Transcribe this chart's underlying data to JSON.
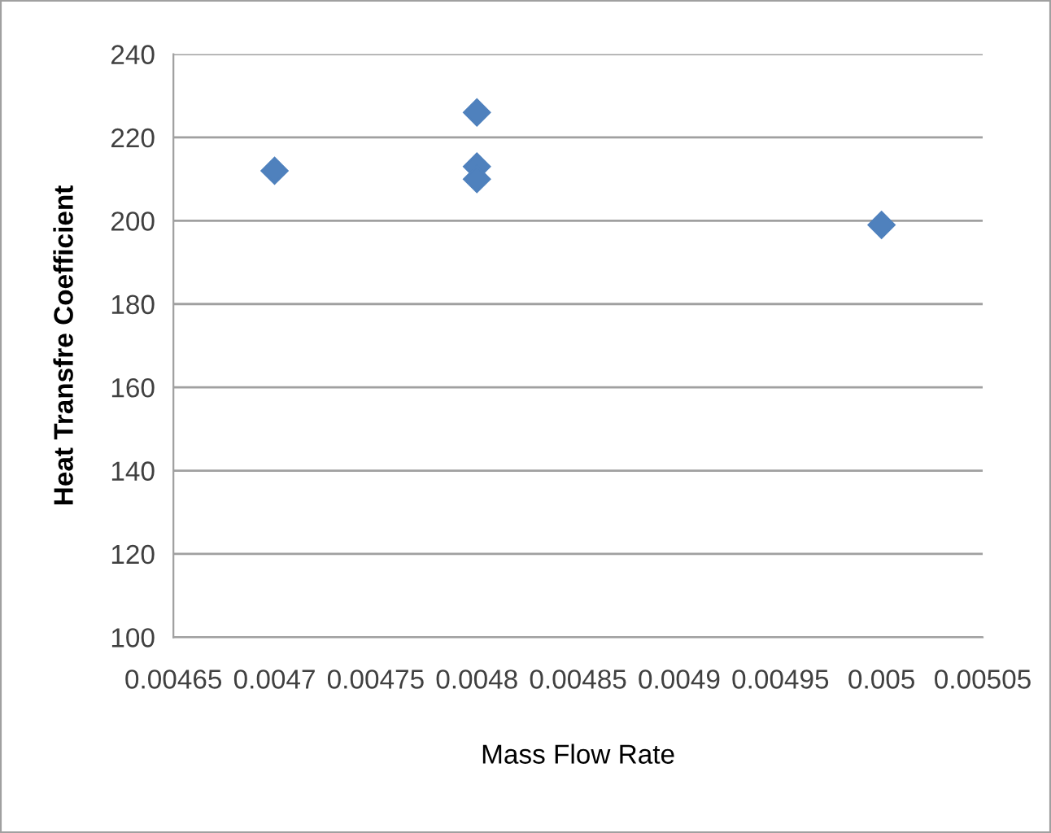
{
  "chart_data": {
    "type": "scatter",
    "xlabel": "Mass Flow Rate",
    "ylabel": "Heat Transfre Coefficient",
    "x": [
      0.0047,
      0.0048,
      0.0048,
      0.0048,
      0.005
    ],
    "series": [
      {
        "color": "#4f81bd",
        "values": [
          212,
          226,
          213,
          210,
          199
        ]
      }
    ],
    "marker": "diamond",
    "grid": "y",
    "legend": false,
    "xlim": [
      0.00465,
      0.00505
    ],
    "xticks": [
      0.00465,
      0.0047,
      0.00475,
      0.0048,
      0.00485,
      0.0049,
      0.00495,
      0.005,
      0.00505
    ],
    "ylim": [
      100,
      240
    ],
    "yticks": [
      100,
      120,
      140,
      160,
      180,
      200,
      220,
      240
    ]
  }
}
